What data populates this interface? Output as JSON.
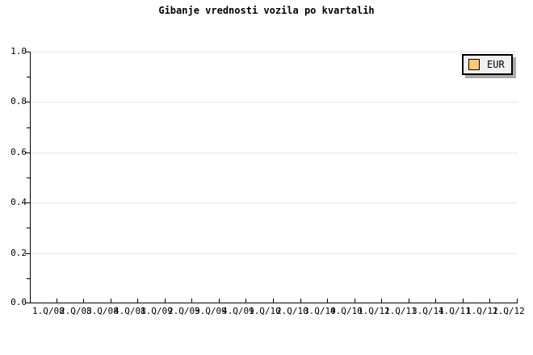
{
  "chart_data": {
    "type": "line",
    "title": "Gibanje vrednosti vozila po kvartalih",
    "x_categories": [
      "1.Q/08",
      "2.Q/08",
      "3.Q/08",
      "4.Q/08",
      "1.Q/09",
      "2.Q/09",
      "3.Q/09",
      "4.Q/09",
      "1.Q/10",
      "2.Q/10",
      "3.Q/10",
      "4.Q/10",
      "1.Q/11",
      "2.Q/11",
      "3.Q/11",
      "4.Q/11",
      "1.Q/12",
      "1.Q/12"
    ],
    "xlabel": "",
    "ylabel": "",
    "ylim": [
      0.0,
      1.0
    ],
    "y_tick_values": [
      0.0,
      0.2,
      0.4,
      0.6,
      0.8,
      1.0
    ],
    "y_tick_labels": [
      "0.0",
      "0.2",
      "0.4",
      "0.6",
      "0.8",
      "1.0"
    ],
    "y_minor_tick_step": 0.1,
    "y_gridline_values": [
      0.2,
      0.4,
      0.6,
      0.8,
      1.0
    ],
    "grid": "horizontal-major",
    "series": [
      {
        "name": "EUR",
        "color": "#FCCA70",
        "values": []
      }
    ],
    "legend": {
      "position": "top-right",
      "entries": [
        {
          "label": "EUR",
          "swatch_color": "#FCCA70"
        }
      ]
    }
  },
  "colors": {
    "background": "#FFFFFF",
    "text": "#000000",
    "axis": "#000000",
    "gridline": "#E6E6E6",
    "legend_background": "#F0F0F0",
    "legend_border": "#000000",
    "legend_shadow": "#AAAAAA",
    "series_eur_swatch": "#FCCA70"
  }
}
